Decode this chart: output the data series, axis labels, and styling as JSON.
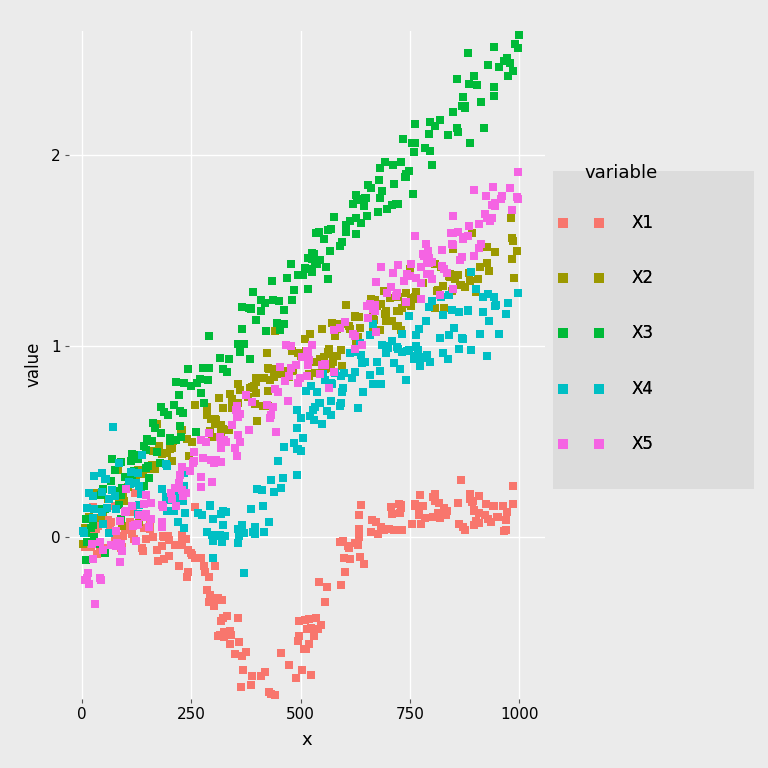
{
  "title": "",
  "xlabel": "x",
  "ylabel": "value",
  "xlim": [
    -30,
    1060
  ],
  "ylim": [
    -0.85,
    2.65
  ],
  "yticks": [
    0.0,
    1.0,
    2.0
  ],
  "xticks": [
    0,
    250,
    500,
    750,
    1000
  ],
  "background_color": "#EBEBEB",
  "panel_color": "#EBEBEB",
  "grid_color": "#FFFFFF",
  "series_order": [
    "X1",
    "X2",
    "X3",
    "X4",
    "X5"
  ],
  "series": {
    "X1": {
      "color": "#F8766D",
      "seed": 42
    },
    "X2": {
      "color": "#9C9900",
      "seed": 123
    },
    "X3": {
      "color": "#00BA38",
      "seed": 456
    },
    "X4": {
      "color": "#00BFC4",
      "seed": 789
    },
    "X5": {
      "color": "#F564E3",
      "seed": 321
    }
  },
  "legend_title": "variable",
  "n_points": 200,
  "marker_size": 36
}
